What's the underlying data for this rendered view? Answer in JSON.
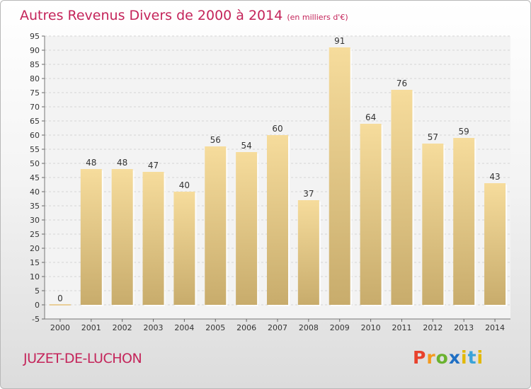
{
  "header": {
    "title": "Autres Revenus Divers de 2000 à 2014",
    "unit": "(en milliers d'€)"
  },
  "footer": {
    "commune": "JUZET-DE-LUCHON",
    "logo": "Proxiti"
  },
  "colors": {
    "title": "#c4245a",
    "bar_top": "#f6dc9c",
    "bar_bottom": "#c8ac6c",
    "grid": "#d4d4d4"
  },
  "chart_data": {
    "type": "bar",
    "title": "Autres Revenus Divers de 2000 à 2014",
    "xlabel": "",
    "ylabel": "",
    "ylim": [
      -5,
      95
    ],
    "ytick_step": 5,
    "grid": true,
    "categories": [
      "2000",
      "2001",
      "2002",
      "2003",
      "2004",
      "2005",
      "2006",
      "2007",
      "2008",
      "2009",
      "2010",
      "2011",
      "2012",
      "2013",
      "2014"
    ],
    "values": [
      0,
      48,
      48,
      47,
      40,
      56,
      54,
      60,
      37,
      91,
      64,
      76,
      57,
      59,
      43
    ]
  }
}
